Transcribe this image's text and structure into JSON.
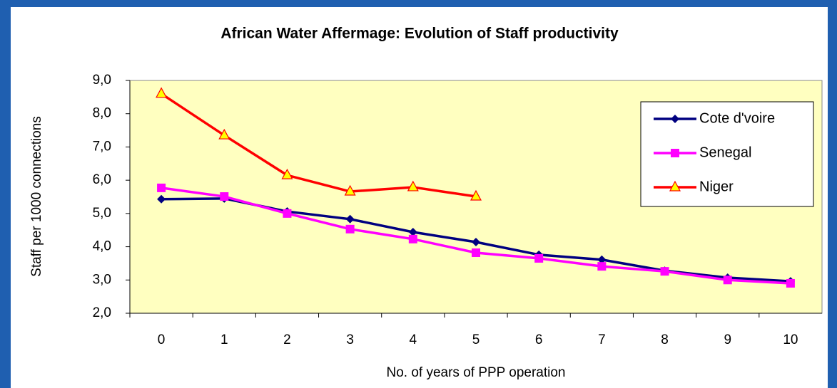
{
  "chart_data": {
    "type": "line",
    "title": "African Water Affermage: Evolution of Staff productivity",
    "x_label": "No. of years of PPP operation",
    "y_label": "Staff per 1000 connections",
    "categories": [
      "0",
      "1",
      "2",
      "3",
      "4",
      "5",
      "6",
      "7",
      "8",
      "9",
      "10"
    ],
    "series": [
      {
        "name": "Cote d'voire",
        "color": "#000080",
        "marker": "diamond",
        "values": [
          5.43,
          5.45,
          5.06,
          4.83,
          4.44,
          4.14,
          3.76,
          3.61,
          3.28,
          3.07,
          2.96
        ]
      },
      {
        "name": "Senegal",
        "color": "#ff00ff",
        "marker": "square",
        "values": [
          5.77,
          5.51,
          5.0,
          4.53,
          4.23,
          3.82,
          3.65,
          3.41,
          3.26,
          3.0,
          2.9
        ]
      },
      {
        "name": "Niger",
        "color": "#ff0000",
        "marker": "triangle",
        "values": [
          8.6,
          7.35,
          6.15,
          5.66,
          5.79,
          5.51,
          null,
          null,
          null,
          null,
          null
        ]
      }
    ],
    "ylim": [
      2,
      9
    ],
    "yticks": [
      {
        "value": 2,
        "label": "2,0"
      },
      {
        "value": 3,
        "label": "3,0"
      },
      {
        "value": 4,
        "label": "4,0"
      },
      {
        "value": 5,
        "label": "5,0"
      },
      {
        "value": 6,
        "label": "6,0"
      },
      {
        "value": 7,
        "label": "7,0"
      },
      {
        "value": 8,
        "label": "8,0"
      },
      {
        "value": 9,
        "label": "9,0"
      }
    ],
    "legend": "upper right",
    "plot_background": "#ffffc0"
  }
}
